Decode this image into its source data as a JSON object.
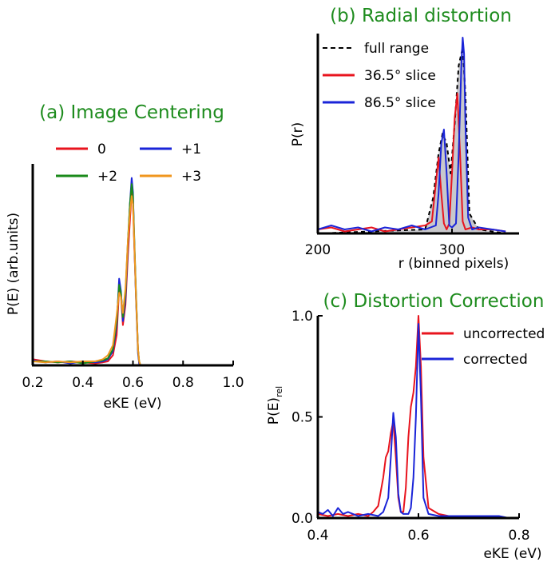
{
  "chart_data": [
    {
      "id": "a",
      "type": "line",
      "title": "(a) Image Centering",
      "xlabel": "eKE (eV)",
      "ylabel": "P(E) (arb.units)",
      "xlim": [
        0.2,
        1.0
      ],
      "ylim": [
        0,
        1.0
      ],
      "xticks": [
        "0.2",
        "0.4",
        "0.6",
        "0.8",
        "1.0"
      ],
      "xtick_values": [
        0.2,
        0.4,
        0.6,
        0.8,
        1.0
      ],
      "legend_position": "top",
      "series": [
        {
          "name": "0",
          "color": "#e8141e",
          "x": [
            0.2,
            0.25,
            0.3,
            0.35,
            0.4,
            0.45,
            0.48,
            0.5,
            0.52,
            0.535,
            0.545,
            0.552,
            0.56,
            0.57,
            0.58,
            0.588,
            0.595,
            0.6,
            0.605,
            0.612,
            0.62,
            0.625,
            0.63
          ],
          "y": [
            0.03,
            0.02,
            0.015,
            0.02,
            0.015,
            0.01,
            0.015,
            0.02,
            0.05,
            0.15,
            0.38,
            0.35,
            0.2,
            0.3,
            0.55,
            0.72,
            0.86,
            0.8,
            0.6,
            0.35,
            0.08,
            0.01,
            0.0
          ]
        },
        {
          "name": "+1",
          "color": "#1a24d8",
          "x": [
            0.2,
            0.25,
            0.3,
            0.35,
            0.4,
            0.45,
            0.48,
            0.5,
            0.52,
            0.535,
            0.545,
            0.552,
            0.56,
            0.57,
            0.58,
            0.588,
            0.595,
            0.6,
            0.605,
            0.612,
            0.62,
            0.625,
            0.63
          ],
          "y": [
            0.025,
            0.015,
            0.02,
            0.01,
            0.02,
            0.015,
            0.02,
            0.03,
            0.07,
            0.2,
            0.43,
            0.37,
            0.22,
            0.33,
            0.6,
            0.8,
            0.93,
            0.86,
            0.62,
            0.33,
            0.06,
            0.01,
            0.0
          ]
        },
        {
          "name": "+2",
          "color": "#1a8a1a",
          "x": [
            0.2,
            0.25,
            0.3,
            0.35,
            0.4,
            0.45,
            0.48,
            0.5,
            0.52,
            0.535,
            0.545,
            0.552,
            0.56,
            0.57,
            0.58,
            0.588,
            0.595,
            0.6,
            0.605,
            0.612,
            0.62,
            0.625,
            0.63
          ],
          "y": [
            0.02,
            0.02,
            0.015,
            0.02,
            0.01,
            0.02,
            0.025,
            0.035,
            0.08,
            0.22,
            0.4,
            0.36,
            0.24,
            0.36,
            0.62,
            0.8,
            0.9,
            0.84,
            0.64,
            0.36,
            0.08,
            0.02,
            0.0
          ]
        },
        {
          "name": "+3",
          "color": "#f0961e",
          "x": [
            0.2,
            0.25,
            0.3,
            0.35,
            0.4,
            0.45,
            0.48,
            0.5,
            0.52,
            0.535,
            0.545,
            0.552,
            0.56,
            0.57,
            0.58,
            0.588,
            0.595,
            0.6,
            0.605,
            0.612,
            0.62,
            0.625,
            0.63
          ],
          "y": [
            0.02,
            0.015,
            0.02,
            0.015,
            0.02,
            0.02,
            0.03,
            0.05,
            0.1,
            0.25,
            0.36,
            0.34,
            0.26,
            0.38,
            0.62,
            0.76,
            0.84,
            0.8,
            0.62,
            0.34,
            0.08,
            0.02,
            0.0
          ]
        }
      ]
    },
    {
      "id": "b",
      "type": "line",
      "title": "(b) Radial distortion",
      "xlabel": "r (binned pixels)",
      "ylabel": "P(r)",
      "xlim": [
        200,
        350
      ],
      "ylim": [
        0,
        1.0
      ],
      "xticks": [
        "200",
        "300"
      ],
      "xtick_values": [
        200,
        300
      ],
      "legend_position": "top-left",
      "series": [
        {
          "name": "full range",
          "color": "#000000",
          "dashed": true,
          "filled": true,
          "x": [
            200,
            280,
            286,
            290,
            293,
            296,
            299,
            302,
            305,
            308,
            310,
            313,
            320,
            340,
            350
          ],
          "y": [
            0.0,
            0.02,
            0.18,
            0.4,
            0.5,
            0.45,
            0.3,
            0.55,
            0.84,
            0.93,
            0.7,
            0.1,
            0.02,
            0.0,
            0.0
          ]
        },
        {
          "name": "36.5° slice",
          "color": "#e8141e",
          "x": [
            200,
            210,
            220,
            230,
            240,
            250,
            260,
            270,
            280,
            285,
            288,
            290,
            292,
            294,
            296,
            298,
            300,
            302,
            304,
            306,
            308,
            310,
            315,
            320,
            330,
            340
          ],
          "y": [
            0.02,
            0.03,
            0.01,
            0.02,
            0.03,
            0.01,
            0.02,
            0.03,
            0.04,
            0.06,
            0.25,
            0.38,
            0.2,
            0.05,
            0.02,
            0.05,
            0.3,
            0.58,
            0.7,
            0.4,
            0.06,
            0.02,
            0.03,
            0.02,
            0.02,
            0.01
          ]
        },
        {
          "name": "86.5° slice",
          "color": "#1a24d8",
          "x": [
            200,
            210,
            220,
            230,
            240,
            250,
            260,
            270,
            280,
            288,
            290,
            292,
            294,
            296,
            298,
            300,
            303,
            305,
            307,
            308,
            309,
            310,
            312,
            315,
            320,
            330,
            340
          ],
          "y": [
            0.02,
            0.04,
            0.02,
            0.03,
            0.01,
            0.03,
            0.02,
            0.04,
            0.02,
            0.04,
            0.2,
            0.45,
            0.52,
            0.3,
            0.04,
            0.03,
            0.05,
            0.4,
            0.85,
            0.98,
            0.9,
            0.55,
            0.08,
            0.02,
            0.03,
            0.02,
            0.01
          ]
        }
      ]
    },
    {
      "id": "c",
      "type": "line",
      "title": "(c) Distortion Correction",
      "xlabel": "eKE (eV)",
      "ylabel_main": "P(E)",
      "ylabel_sub": "rel",
      "xlim": [
        0.4,
        0.8
      ],
      "ylim": [
        0,
        1.0
      ],
      "xticks": [
        "0.4",
        "0.6",
        "0.8"
      ],
      "xtick_values": [
        0.4,
        0.6,
        0.8
      ],
      "yticks": [
        "0.0",
        "0.5",
        "1.0"
      ],
      "ytick_values": [
        0.0,
        0.5,
        1.0
      ],
      "legend_position": "top-right",
      "series": [
        {
          "name": "uncorrected",
          "color": "#e8141e",
          "x": [
            0.4,
            0.42,
            0.44,
            0.46,
            0.48,
            0.5,
            0.51,
            0.52,
            0.53,
            0.535,
            0.54,
            0.545,
            0.55,
            0.555,
            0.56,
            0.565,
            0.57,
            0.575,
            0.58,
            0.585,
            0.59,
            0.595,
            0.6,
            0.605,
            0.61,
            0.62,
            0.64,
            0.66,
            0.7,
            0.74,
            0.78
          ],
          "y": [
            0.02,
            0.01,
            0.02,
            0.01,
            0.02,
            0.01,
            0.03,
            0.06,
            0.2,
            0.3,
            0.33,
            0.42,
            0.48,
            0.3,
            0.1,
            0.03,
            0.03,
            0.15,
            0.4,
            0.55,
            0.62,
            0.75,
            1.0,
            0.75,
            0.3,
            0.05,
            0.02,
            0.01,
            0.01,
            0.01,
            0.0
          ]
        },
        {
          "name": "corrected",
          "color": "#1a24d8",
          "x": [
            0.4,
            0.41,
            0.42,
            0.43,
            0.44,
            0.45,
            0.46,
            0.48,
            0.5,
            0.52,
            0.53,
            0.54,
            0.545,
            0.55,
            0.555,
            0.56,
            0.565,
            0.57,
            0.58,
            0.585,
            0.59,
            0.595,
            0.6,
            0.605,
            0.61,
            0.62,
            0.64,
            0.68,
            0.72,
            0.76,
            0.78
          ],
          "y": [
            0.03,
            0.02,
            0.04,
            0.01,
            0.05,
            0.02,
            0.03,
            0.01,
            0.02,
            0.01,
            0.03,
            0.1,
            0.3,
            0.52,
            0.4,
            0.12,
            0.03,
            0.02,
            0.02,
            0.05,
            0.2,
            0.5,
            0.96,
            0.6,
            0.1,
            0.02,
            0.01,
            0.01,
            0.01,
            0.01,
            0.0
          ]
        }
      ]
    }
  ]
}
